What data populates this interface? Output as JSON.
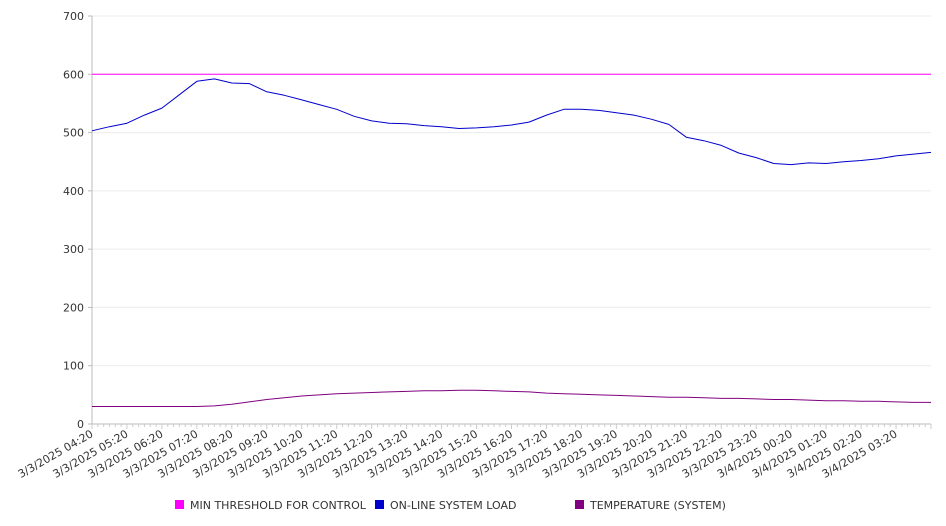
{
  "chart_data": {
    "type": "line",
    "title": "",
    "xlabel": "",
    "ylabel": "",
    "ylim": [
      0,
      700
    ],
    "y_ticks": [
      0,
      100,
      200,
      300,
      400,
      500,
      600,
      700
    ],
    "grid": "horizontal",
    "legend_position": "bottom",
    "x_tick_labels": [
      "3/3/2025 04:20",
      "3/3/2025 05:20",
      "3/3/2025 06:20",
      "3/3/2025 07:20",
      "3/3/2025 08:20",
      "3/3/2025 09:20",
      "3/3/2025 10:20",
      "3/3/2025 11:20",
      "3/3/2025 12:20",
      "3/3/2025 13:20",
      "3/3/2025 14:20",
      "3/3/2025 15:20",
      "3/3/2025 16:20",
      "3/3/2025 17:20",
      "3/3/2025 18:20",
      "3/3/2025 19:20",
      "3/3/2025 20:20",
      "3/3/2025 21:20",
      "3/3/2025 22:20",
      "3/3/2025 23:20",
      "3/4/2025 00:20",
      "3/4/2025 01:20",
      "3/4/2025 02:20",
      "3/4/2025 03:20"
    ],
    "x": [
      "3/3/2025 04:20",
      "3/3/2025 04:50",
      "3/3/2025 05:20",
      "3/3/2025 05:50",
      "3/3/2025 06:20",
      "3/3/2025 06:50",
      "3/3/2025 07:20",
      "3/3/2025 07:50",
      "3/3/2025 08:20",
      "3/3/2025 08:50",
      "3/3/2025 09:20",
      "3/3/2025 09:50",
      "3/3/2025 10:20",
      "3/3/2025 10:50",
      "3/3/2025 11:20",
      "3/3/2025 11:50",
      "3/3/2025 12:20",
      "3/3/2025 12:50",
      "3/3/2025 13:20",
      "3/3/2025 13:50",
      "3/3/2025 14:20",
      "3/3/2025 14:50",
      "3/3/2025 15:20",
      "3/3/2025 15:50",
      "3/3/2025 16:20",
      "3/3/2025 16:50",
      "3/3/2025 17:20",
      "3/3/2025 17:50",
      "3/3/2025 18:20",
      "3/3/2025 18:50",
      "3/3/2025 19:20",
      "3/3/2025 19:50",
      "3/3/2025 20:20",
      "3/3/2025 20:50",
      "3/3/2025 21:20",
      "3/3/2025 21:50",
      "3/3/2025 22:20",
      "3/3/2025 22:50",
      "3/3/2025 23:20",
      "3/3/2025 23:50",
      "3/4/2025 00:20",
      "3/4/2025 00:50",
      "3/4/2025 01:20",
      "3/4/2025 01:50",
      "3/4/2025 02:20",
      "3/4/2025 02:50",
      "3/4/2025 03:20",
      "3/4/2025 03:50",
      "3/4/2025 04:20"
    ],
    "series": [
      {
        "name": "MIN THRESHOLD FOR CONTROL",
        "color": "#ff00ff",
        "values": [
          600,
          600,
          600,
          600,
          600,
          600,
          600,
          600,
          600,
          600,
          600,
          600,
          600,
          600,
          600,
          600,
          600,
          600,
          600,
          600,
          600,
          600,
          600,
          600,
          600,
          600,
          600,
          600,
          600,
          600,
          600,
          600,
          600,
          600,
          600,
          600,
          600,
          600,
          600,
          600,
          600,
          600,
          600,
          600,
          600,
          600,
          600,
          600,
          600
        ]
      },
      {
        "name": "ON-LINE SYSTEM LOAD",
        "color": "#0000cc",
        "values": [
          503,
          510,
          516,
          530,
          542,
          565,
          588,
          592,
          585,
          584,
          570,
          564,
          556,
          548,
          540,
          528,
          520,
          516,
          515,
          512,
          510,
          507,
          508,
          510,
          513,
          518,
          530,
          540,
          540,
          538,
          534,
          530,
          523,
          514,
          492,
          486,
          478,
          465,
          457,
          447,
          445,
          448,
          447,
          450,
          452,
          455,
          460,
          463,
          466
        ]
      },
      {
        "name": "TEMPERATURE (SYSTEM)",
        "color": "#800080",
        "values": [
          30,
          30,
          30,
          30,
          30,
          30,
          30,
          31,
          34,
          38,
          42,
          45,
          48,
          50,
          52,
          53,
          54,
          55,
          56,
          57,
          57,
          58,
          58,
          57,
          56,
          55,
          53,
          52,
          51,
          50,
          49,
          48,
          47,
          46,
          46,
          45,
          44,
          44,
          43,
          42,
          42,
          41,
          40,
          40,
          39,
          39,
          38,
          37,
          37
        ]
      }
    ]
  }
}
